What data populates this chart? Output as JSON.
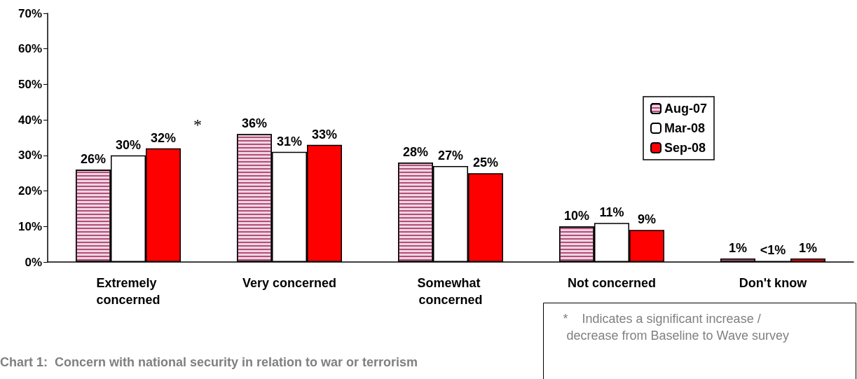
{
  "chart_data": {
    "type": "bar",
    "title": "Chart 1:  Concern with national security in relation to war or terrorism",
    "categories": [
      "Extremely concerned",
      "Very concerned",
      "Somewhat concerned",
      "Not concerned",
      "Don't know"
    ],
    "series": [
      {
        "name": "Aug-07",
        "color": "#f2d4e2",
        "values": [
          26,
          36,
          28,
          10,
          1
        ],
        "value_labels": [
          "26%",
          "36%",
          "28%",
          "10%",
          "1%"
        ]
      },
      {
        "name": "Mar-08",
        "color": "#ffffff",
        "values": [
          30,
          31,
          27,
          11,
          0.3
        ],
        "value_labels": [
          "30%",
          "31%",
          "27%",
          "11%",
          "<1%"
        ]
      },
      {
        "name": "Sep-08",
        "color": "#ff0000",
        "values": [
          32,
          33,
          25,
          9,
          1
        ],
        "value_labels": [
          "32%",
          "33%",
          "25%",
          "9%",
          "1%"
        ]
      }
    ],
    "ylim": [
      0,
      70
    ],
    "yticks": [
      {
        "value": 0,
        "label": "0%"
      },
      {
        "value": 10,
        "label": "10%"
      },
      {
        "value": 20,
        "label": "20%"
      },
      {
        "value": 30,
        "label": "30%"
      },
      {
        "value": 40,
        "label": "40%"
      },
      {
        "value": 50,
        "label": "50%"
      },
      {
        "value": 60,
        "label": "60%"
      },
      {
        "value": 70,
        "label": "70%"
      }
    ],
    "annotations": [
      "*",
      "*    Indicates a significant increase / decrease from Baseline to Wave survey"
    ],
    "grid": false,
    "legend": "right"
  }
}
